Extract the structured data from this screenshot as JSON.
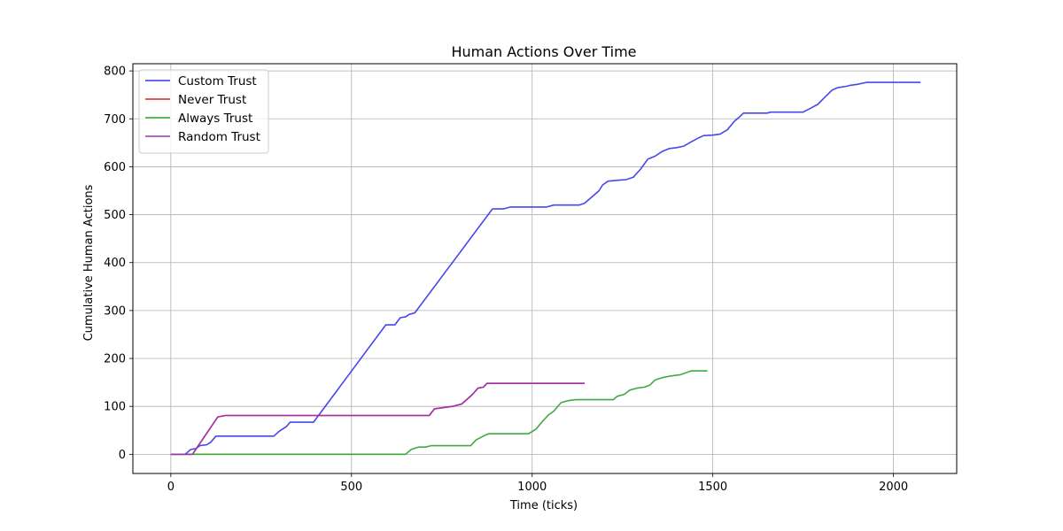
{
  "chart_data": {
    "type": "line",
    "title": "Human Actions Over Time",
    "xlabel": "Time (ticks)",
    "ylabel": "Cumulative Human Actions",
    "xlim": [
      -105,
      2175
    ],
    "ylim": [
      -40,
      815
    ],
    "x_ticks": [
      0,
      500,
      1000,
      1500,
      2000
    ],
    "y_ticks": [
      0,
      100,
      200,
      300,
      400,
      500,
      600,
      700,
      800
    ],
    "grid": true,
    "legend_position": "top-left",
    "series": [
      {
        "name": "Custom Trust",
        "color": "#3333ee",
        "points": [
          [
            0,
            0
          ],
          [
            40,
            0
          ],
          [
            55,
            10
          ],
          [
            70,
            12
          ],
          [
            80,
            18
          ],
          [
            100,
            20
          ],
          [
            110,
            25
          ],
          [
            125,
            38
          ],
          [
            145,
            38
          ],
          [
            285,
            38
          ],
          [
            300,
            48
          ],
          [
            320,
            58
          ],
          [
            330,
            67
          ],
          [
            345,
            67
          ],
          [
            395,
            67
          ],
          [
            595,
            270
          ],
          [
            620,
            270
          ],
          [
            635,
            285
          ],
          [
            650,
            287
          ],
          [
            660,
            292
          ],
          [
            675,
            295
          ],
          [
            890,
            512
          ],
          [
            920,
            512
          ],
          [
            940,
            516
          ],
          [
            1040,
            516
          ],
          [
            1060,
            520
          ],
          [
            1130,
            520
          ],
          [
            1145,
            524
          ],
          [
            1170,
            540
          ],
          [
            1185,
            550
          ],
          [
            1195,
            562
          ],
          [
            1210,
            570
          ],
          [
            1240,
            572
          ],
          [
            1260,
            573
          ],
          [
            1280,
            578
          ],
          [
            1300,
            595
          ],
          [
            1320,
            616
          ],
          [
            1340,
            622
          ],
          [
            1360,
            632
          ],
          [
            1380,
            638
          ],
          [
            1400,
            640
          ],
          [
            1420,
            643
          ],
          [
            1440,
            652
          ],
          [
            1460,
            660
          ],
          [
            1475,
            665
          ],
          [
            1500,
            666
          ],
          [
            1520,
            668
          ],
          [
            1540,
            677
          ],
          [
            1560,
            695
          ],
          [
            1575,
            705
          ],
          [
            1585,
            712
          ],
          [
            1650,
            712
          ],
          [
            1660,
            714
          ],
          [
            1750,
            714
          ],
          [
            1770,
            722
          ],
          [
            1790,
            730
          ],
          [
            1810,
            745
          ],
          [
            1830,
            760
          ],
          [
            1845,
            765
          ],
          [
            1870,
            768
          ],
          [
            1880,
            770
          ],
          [
            1900,
            772
          ],
          [
            1925,
            776
          ],
          [
            2075,
            776
          ]
        ]
      },
      {
        "name": "Never Trust",
        "color": "#dd2222",
        "points": [
          [
            0,
            0
          ],
          [
            60,
            0
          ],
          [
            130,
            78
          ],
          [
            150,
            81
          ],
          [
            715,
            81
          ],
          [
            730,
            95
          ],
          [
            780,
            100
          ],
          [
            805,
            105
          ],
          [
            820,
            115
          ],
          [
            835,
            125
          ],
          [
            850,
            138
          ],
          [
            865,
            140
          ],
          [
            875,
            148
          ],
          [
            1145,
            148
          ]
        ]
      },
      {
        "name": "Always Trust",
        "color": "#2ca02c",
        "points": [
          [
            0,
            0
          ],
          [
            650,
            0
          ],
          [
            665,
            10
          ],
          [
            685,
            15
          ],
          [
            705,
            15
          ],
          [
            720,
            18
          ],
          [
            830,
            18
          ],
          [
            845,
            30
          ],
          [
            870,
            40
          ],
          [
            880,
            43
          ],
          [
            990,
            43
          ],
          [
            1010,
            52
          ],
          [
            1030,
            70
          ],
          [
            1045,
            82
          ],
          [
            1060,
            90
          ],
          [
            1080,
            108
          ],
          [
            1100,
            112
          ],
          [
            1120,
            114
          ],
          [
            1225,
            114
          ],
          [
            1235,
            121
          ],
          [
            1255,
            125
          ],
          [
            1270,
            134
          ],
          [
            1290,
            138
          ],
          [
            1310,
            140
          ],
          [
            1325,
            144
          ],
          [
            1340,
            155
          ],
          [
            1360,
            160
          ],
          [
            1380,
            163
          ],
          [
            1410,
            166
          ],
          [
            1425,
            170
          ],
          [
            1440,
            174
          ],
          [
            1485,
            174
          ]
        ]
      },
      {
        "name": "Random Trust",
        "color": "#9933bb",
        "points": [
          [
            0,
            0
          ],
          [
            60,
            0
          ],
          [
            130,
            78
          ],
          [
            150,
            81
          ],
          [
            715,
            81
          ],
          [
            730,
            95
          ],
          [
            780,
            100
          ],
          [
            805,
            105
          ],
          [
            820,
            115
          ],
          [
            835,
            125
          ],
          [
            850,
            138
          ],
          [
            865,
            140
          ],
          [
            875,
            148
          ],
          [
            1145,
            148
          ]
        ]
      }
    ]
  }
}
